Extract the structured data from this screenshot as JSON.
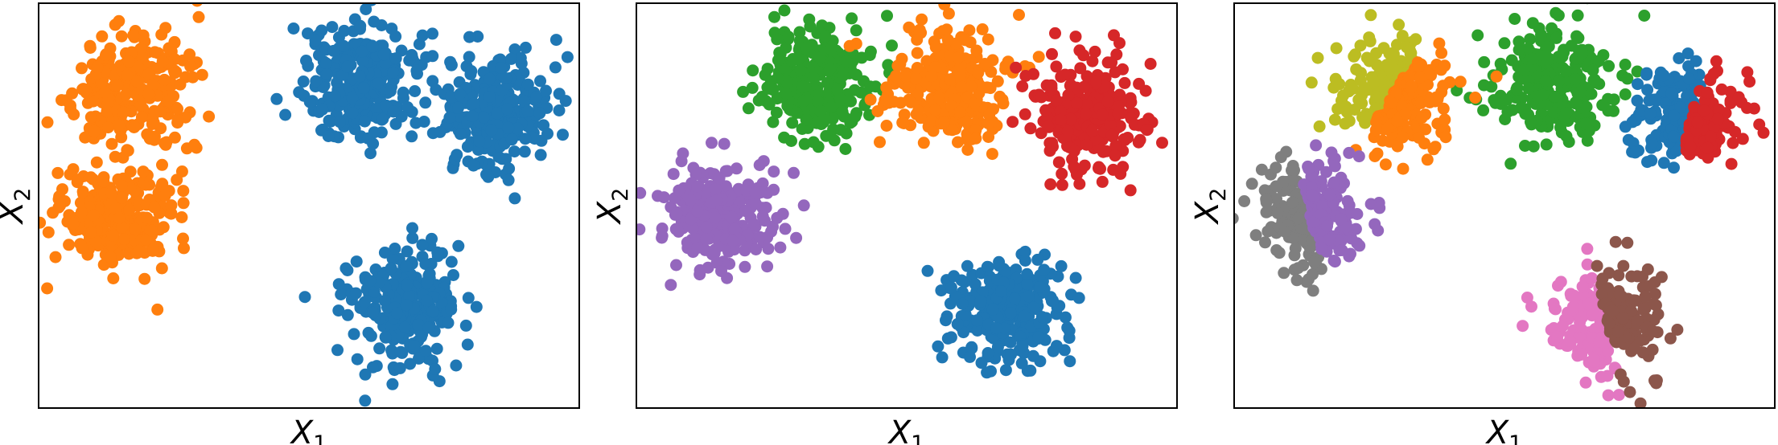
{
  "chart_data": [
    {
      "type": "scatter",
      "panel": "left",
      "xlabel": "X",
      "xlabel_sub": "1",
      "ylabel": "X",
      "ylabel_sub": "2",
      "xlim": [
        0,
        100
      ],
      "ylim": [
        0,
        100
      ],
      "ticks": "none",
      "grid": false,
      "series": [
        {
          "color": "#ff7f0e",
          "clusters": [
            {
              "cx": 17,
              "cy": 79,
              "sx": 5.4,
              "sy": 7.0,
              "n": 260,
              "seed": 11
            },
            {
              "cx": 14.5,
              "cy": 47,
              "sx": 5.2,
              "sy": 6.5,
              "n": 260,
              "seed": 12
            }
          ]
        },
        {
          "color": "#1f77b4",
          "clusters": [
            {
              "cx": 59,
              "cy": 80,
              "sx": 5.4,
              "sy": 7.0,
              "n": 260,
              "seed": 13
            },
            {
              "cx": 84.5,
              "cy": 73,
              "sx": 5.4,
              "sy": 7.0,
              "n": 260,
              "seed": 14
            },
            {
              "cx": 68,
              "cy": 25,
              "sx": 5.4,
              "sy": 7.0,
              "n": 260,
              "seed": 15
            }
          ]
        }
      ]
    },
    {
      "type": "scatter",
      "panel": "middle",
      "xlabel": "X",
      "xlabel_sub": "1",
      "ylabel": "X",
      "ylabel_sub": "2",
      "xlim": [
        0,
        100
      ],
      "ylim": [
        0,
        100
      ],
      "ticks": "none",
      "grid": false,
      "series": [
        {
          "color": "#2ca02c",
          "clusters": [
            {
              "cx": 33,
              "cy": 80,
              "sx": 5.4,
              "sy": 7.0,
              "n": 260,
              "seed": 21
            }
          ]
        },
        {
          "color": "#ff7f0e",
          "clusters": [
            {
              "cx": 57.5,
              "cy": 80,
              "sx": 5.4,
              "sy": 7.0,
              "n": 260,
              "seed": 22
            }
          ]
        },
        {
          "color": "#d62728",
          "clusters": [
            {
              "cx": 83.5,
              "cy": 72,
              "sx": 5.4,
              "sy": 7.0,
              "n": 260,
              "seed": 23
            }
          ]
        },
        {
          "color": "#9467bd",
          "clusters": [
            {
              "cx": 14.5,
              "cy": 47,
              "sx": 5.2,
              "sy": 6.5,
              "n": 260,
              "seed": 24
            }
          ]
        },
        {
          "color": "#1f77b4",
          "clusters": [
            {
              "cx": 68,
              "cy": 24,
              "sx": 5.4,
              "sy": 7.0,
              "n": 260,
              "seed": 25
            }
          ]
        }
      ]
    },
    {
      "type": "scatter",
      "panel": "right",
      "xlabel": "X",
      "xlabel_sub": "1",
      "ylabel": "X",
      "ylabel_sub": "2",
      "xlim": [
        0,
        100
      ],
      "ylim": [
        0,
        100
      ],
      "ticks": "none",
      "grid": false,
      "series": [
        {
          "color": "#2ca02c",
          "clusters": [
            {
              "cx": 59,
              "cy": 80,
              "sx": 5.4,
              "sy": 7.0,
              "n": 260,
              "seed": 31
            }
          ]
        },
        {
          "color": "#bcbd22",
          "clusters": [
            {
              "cx": 30,
              "cy": 77,
              "sx": 5.0,
              "sy": 6.5,
              "n": 260,
              "seed": 32,
              "split": {
                "nx": 1,
                "ny": -0.65,
                "c": -2,
                "keep": "less"
              }
            }
          ]
        },
        {
          "color": "#ff7f0e",
          "clusters": [
            {
              "cx": 30,
              "cy": 77,
              "sx": 5.0,
              "sy": 6.5,
              "n": 260,
              "seed": 32,
              "split": {
                "nx": 1,
                "ny": -0.65,
                "c": -2,
                "keep": "greater"
              }
            }
          ]
        },
        {
          "color": "#1f77b4",
          "clusters": [
            {
              "cx": 84,
              "cy": 72,
              "sx": 5.0,
              "sy": 6.5,
              "n": 260,
              "seed": 33,
              "split": {
                "nx": 1,
                "ny": -0.3,
                "c": 1,
                "keep": "less"
              }
            }
          ]
        },
        {
          "color": "#d62728",
          "clusters": [
            {
              "cx": 84,
              "cy": 72,
              "sx": 5.0,
              "sy": 6.5,
              "n": 260,
              "seed": 33,
              "split": {
                "nx": 1,
                "ny": -0.3,
                "c": 1,
                "keep": "greater"
              }
            }
          ]
        },
        {
          "color": "#7f7f7f",
          "clusters": [
            {
              "cx": 14,
              "cy": 48,
              "sx": 5.0,
              "sy": 6.5,
              "n": 260,
              "seed": 34,
              "split": {
                "nx": 1,
                "ny": 0.25,
                "c": 0,
                "keep": "less"
              }
            }
          ]
        },
        {
          "color": "#9467bd",
          "clusters": [
            {
              "cx": 14,
              "cy": 48,
              "sx": 5.0,
              "sy": 6.5,
              "n": 260,
              "seed": 34,
              "split": {
                "nx": 1,
                "ny": 0.25,
                "c": 0,
                "keep": "greater"
              }
            }
          ]
        },
        {
          "color": "#e377c2",
          "clusters": [
            {
              "cx": 69,
              "cy": 21,
              "sx": 5.0,
              "sy": 6.5,
              "n": 260,
              "seed": 35,
              "split": {
                "nx": 1,
                "ny": 0.2,
                "c": 0,
                "keep": "less"
              }
            }
          ]
        },
        {
          "color": "#8c564b",
          "clusters": [
            {
              "cx": 69,
              "cy": 21,
              "sx": 5.0,
              "sy": 6.5,
              "n": 260,
              "seed": 35,
              "split": {
                "nx": 1,
                "ny": 0.2,
                "c": 0,
                "keep": "greater"
              }
            }
          ]
        }
      ]
    }
  ]
}
